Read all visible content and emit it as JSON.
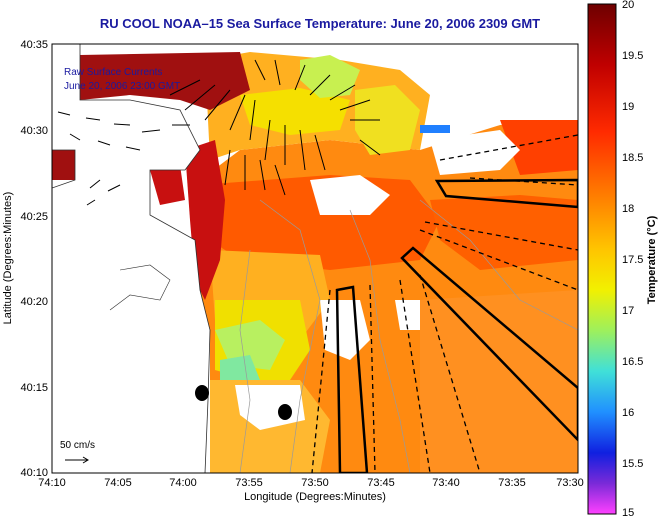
{
  "title": "RU COOL  NOAA–15  Sea Surface Temperature:  June 20, 2006 2309 GMT",
  "legend_overlay": {
    "line1": "Raw Surface Currents",
    "line2": "June 20, 2006 23:00 GMT"
  },
  "scale_label": "50 cm/s",
  "x_axis": {
    "label": "Longitude (Degrees:Minutes)",
    "ticks": [
      "74:10",
      "74:05",
      "74:00",
      "73:55",
      "73:50",
      "73:45",
      "73:40",
      "73:35",
      "73:30"
    ]
  },
  "y_axis": {
    "label": "Latitude (Degrees:Minutes)",
    "ticks": [
      "40:35",
      "40:30",
      "40:25",
      "40:20",
      "40:15",
      "40:10"
    ]
  },
  "colorbar": {
    "label": "Temperature (°C)",
    "ticks": [
      "20",
      "19.5",
      "19",
      "18.5",
      "18",
      "17.5",
      "17",
      "16.5",
      "16",
      "15.5",
      "15"
    ],
    "colors": [
      "#7a0000",
      "#c80000",
      "#ff3000",
      "#ff8000",
      "#ffc000",
      "#f0f000",
      "#a0f060",
      "#40e0e0",
      "#2080ff",
      "#1020e0",
      "#6020d0",
      "#ff40ff"
    ]
  },
  "colors": {
    "title": "#1a1aa0",
    "land": "#ffffff",
    "coast": "#303030",
    "vectors": "#000000"
  }
}
